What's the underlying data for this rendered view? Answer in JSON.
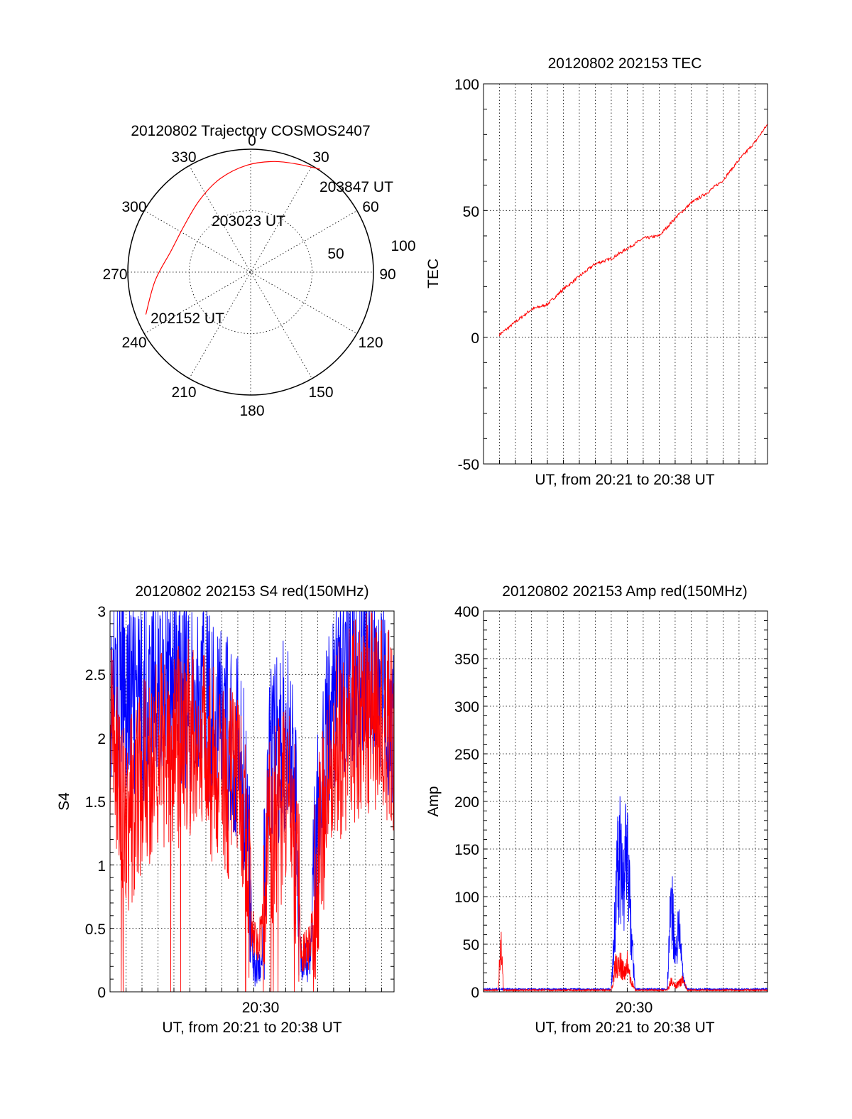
{
  "colors": {
    "red": "#ff0000",
    "blue": "#0000ff"
  },
  "chart_data": [
    {
      "id": "trajectory",
      "type": "polar",
      "title": "20120802 Trajectory COSMOS2407",
      "angle_labels": [
        "0",
        "30",
        "60",
        "90",
        "120",
        "150",
        "180",
        "210",
        "240",
        "270",
        "300",
        "330"
      ],
      "radius_labels": [
        "50",
        "100"
      ],
      "point_labels": [
        "203847 UT",
        "203023 UT",
        "202152 UT"
      ],
      "trajectory": {
        "color": "red",
        "points": [
          {
            "az": 248,
            "r": 92
          },
          {
            "az": 265,
            "r": 78
          },
          {
            "az": 285,
            "r": 67
          },
          {
            "az": 305,
            "r": 66
          },
          {
            "az": 325,
            "r": 72
          },
          {
            "az": 342,
            "r": 80
          },
          {
            "az": 358,
            "r": 87
          },
          {
            "az": 12,
            "r": 92
          },
          {
            "az": 24,
            "r": 96
          },
          {
            "az": 34,
            "r": 101
          }
        ]
      }
    },
    {
      "id": "tec",
      "type": "line",
      "title": "20120802 202153 TEC",
      "ylabel": "TEC",
      "xlabel": "UT, from 20:21 to 20:38 UT",
      "ylim": [
        -50,
        100
      ],
      "yticks": [
        "100",
        "50",
        "0",
        "-50"
      ],
      "xlim": [
        "20:21:00",
        "20:38:47"
      ],
      "grid": true,
      "series": [
        {
          "color": "red",
          "x": [
            "20:22:00",
            "20:23:00",
            "20:24:00",
            "20:25:00",
            "20:26:00",
            "20:27:00",
            "20:28:00",
            "20:29:00",
            "20:30:00",
            "20:31:00",
            "20:32:00",
            "20:33:00",
            "20:34:00",
            "20:35:00",
            "20:36:00",
            "20:37:00",
            "20:38:00",
            "20:38:47"
          ],
          "y": [
            1,
            6,
            11,
            13,
            19,
            24,
            29,
            31,
            35,
            39,
            40,
            47,
            53,
            57,
            62,
            70,
            77,
            84
          ]
        }
      ]
    },
    {
      "id": "s4",
      "type": "line",
      "title": "20120802 202153 S4 red(150MHz)",
      "ylabel": "S4",
      "xlabel": "UT, from 20:21 to 20:38 UT",
      "xtick_label": "20:30",
      "ylim": [
        0,
        3
      ],
      "yticks": [
        "3",
        "2.5",
        "2",
        "1.5",
        "1",
        "0.5",
        "0"
      ],
      "xlim": [
        "20:21:00",
        "20:38:47"
      ],
      "grid": true,
      "series": [
        {
          "color": "blue",
          "x": [
            "20:21:00",
            "20:22:00",
            "20:23:00",
            "20:24:00",
            "20:25:00",
            "20:26:00",
            "20:27:00",
            "20:28:00",
            "20:29:00",
            "20:29:30",
            "20:30:00",
            "20:30:30",
            "20:31:00",
            "20:31:30",
            "20:32:00",
            "20:32:30",
            "20:33:00",
            "20:33:30",
            "20:34:00",
            "20:35:00",
            "20:36:00",
            "20:37:00",
            "20:38:00",
            "20:38:47"
          ],
          "y": [
            2.3,
            2.4,
            2.2,
            2.5,
            2.4,
            2.3,
            2.3,
            2.1,
            1.9,
            1.5,
            0.2,
            0.2,
            1.8,
            1.9,
            2.0,
            1.8,
            0.2,
            0.25,
            1.3,
            2.4,
            2.5,
            2.6,
            2.5,
            2.2
          ]
        },
        {
          "color": "red",
          "x": [
            "20:21:00",
            "20:22:00",
            "20:23:00",
            "20:24:00",
            "20:25:00",
            "20:26:00",
            "20:27:00",
            "20:28:00",
            "20:29:00",
            "20:29:30",
            "20:30:00",
            "20:30:30",
            "20:31:00",
            "20:31:30",
            "20:32:00",
            "20:32:30",
            "20:33:00",
            "20:33:30",
            "20:34:00",
            "20:35:00",
            "20:36:00",
            "20:37:00",
            "20:38:00",
            "20:38:47"
          ],
          "y": [
            2.1,
            1.3,
            1.7,
            1.9,
            1.9,
            2.0,
            1.9,
            1.7,
            1.5,
            1.2,
            0.4,
            0.45,
            1.3,
            1.4,
            1.5,
            1.3,
            0.3,
            0.35,
            1.0,
            1.9,
            2.1,
            2.2,
            2.2,
            2.0
          ]
        }
      ]
    },
    {
      "id": "amp",
      "type": "line",
      "title": "20120802 202153 Amp red(150MHz)",
      "ylabel": "Amp",
      "xlabel": "UT, from 20:21 to 20:38 UT",
      "xtick_label": "20:30",
      "ylim": [
        0,
        400
      ],
      "yticks": [
        "400",
        "350",
        "300",
        "250",
        "200",
        "150",
        "100",
        "50",
        "0"
      ],
      "xlim": [
        "20:21:00",
        "20:38:47"
      ],
      "grid": true,
      "series": [
        {
          "color": "blue",
          "x": [
            "20:21:00",
            "20:29:00",
            "20:29:15",
            "20:29:30",
            "20:29:45",
            "20:30:00",
            "20:30:15",
            "20:30:30",
            "20:32:30",
            "20:32:45",
            "20:33:00",
            "20:33:15",
            "20:33:30",
            "20:33:45",
            "20:38:47"
          ],
          "y": [
            2,
            2,
            120,
            205,
            150,
            200,
            80,
            2,
            2,
            135,
            60,
            85,
            20,
            2,
            2
          ]
        },
        {
          "color": "red",
          "x": [
            "20:21:00",
            "20:21:55",
            "20:22:05",
            "20:22:15",
            "20:29:00",
            "20:29:15",
            "20:29:30",
            "20:29:45",
            "20:30:00",
            "20:30:15",
            "20:30:30",
            "20:32:30",
            "20:32:45",
            "20:33:00",
            "20:33:15",
            "20:33:30",
            "20:33:45",
            "20:38:47"
          ],
          "y": [
            1,
            1,
            80,
            1,
            1,
            35,
            45,
            30,
            40,
            15,
            1,
            1,
            15,
            8,
            12,
            18,
            1,
            1
          ]
        }
      ]
    }
  ]
}
